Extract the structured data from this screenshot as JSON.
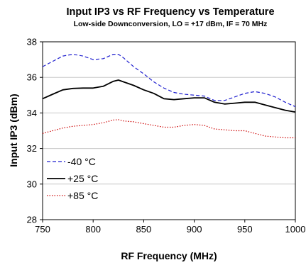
{
  "chart_data": {
    "type": "line",
    "title": "Input IP3 vs RF Frequency vs Temperature",
    "subtitle": "Low-side Downconversion, LO = +17 dBm, IF = 70 MHz",
    "xlabel": "RF Frequency (MHz)",
    "ylabel": "Input IP3 (dBm)",
    "xlim": [
      750,
      1000
    ],
    "ylim": [
      28,
      38
    ],
    "xticks": [
      750,
      800,
      850,
      900,
      950,
      1000
    ],
    "yticks": [
      28,
      30,
      32,
      34,
      36,
      38
    ],
    "xtick_labels": [
      "750",
      "800",
      "850",
      "900",
      "950",
      "1000"
    ],
    "ytick_labels": [
      "28",
      "30",
      "32",
      "34",
      "36",
      "38"
    ],
    "grid": "horizontal",
    "legend_position": "bottom-left",
    "series": [
      {
        "name": "-40 °C",
        "color": "#1f1fcf",
        "style": "dash",
        "x": [
          750,
          760,
          770,
          780,
          790,
          800,
          810,
          820,
          825,
          830,
          840,
          850,
          860,
          870,
          880,
          890,
          900,
          910,
          920,
          930,
          940,
          950,
          960,
          970,
          980,
          990,
          1000
        ],
        "y": [
          36.6,
          36.9,
          37.2,
          37.3,
          37.2,
          37.0,
          37.05,
          37.3,
          37.3,
          37.1,
          36.6,
          36.2,
          35.75,
          35.4,
          35.15,
          35.05,
          35.0,
          34.95,
          34.7,
          34.7,
          34.9,
          35.1,
          35.2,
          35.1,
          34.9,
          34.6,
          34.35
        ]
      },
      {
        "name": "+25 °C",
        "color": "#000000",
        "style": "solid",
        "x": [
          750,
          760,
          770,
          780,
          790,
          800,
          810,
          820,
          825,
          830,
          840,
          850,
          860,
          870,
          880,
          890,
          900,
          910,
          920,
          930,
          940,
          950,
          960,
          970,
          980,
          990,
          1000
        ],
        "y": [
          34.8,
          35.05,
          35.3,
          35.38,
          35.4,
          35.4,
          35.5,
          35.78,
          35.85,
          35.75,
          35.55,
          35.3,
          35.1,
          34.8,
          34.75,
          34.8,
          34.85,
          34.85,
          34.6,
          34.5,
          34.55,
          34.6,
          34.6,
          34.45,
          34.3,
          34.15,
          34.05
        ]
      },
      {
        "name": "+85 °C",
        "color": "#cc0000",
        "style": "dot",
        "x": [
          750,
          760,
          770,
          780,
          790,
          800,
          810,
          820,
          825,
          830,
          840,
          850,
          860,
          870,
          880,
          890,
          900,
          910,
          920,
          930,
          940,
          950,
          960,
          970,
          980,
          990,
          1000
        ],
        "y": [
          32.85,
          33.0,
          33.15,
          33.25,
          33.3,
          33.35,
          33.45,
          33.6,
          33.62,
          33.55,
          33.5,
          33.4,
          33.3,
          33.2,
          33.2,
          33.3,
          33.35,
          33.3,
          33.1,
          33.05,
          33.0,
          33.0,
          32.85,
          32.7,
          32.65,
          32.6,
          32.6
        ]
      }
    ]
  }
}
